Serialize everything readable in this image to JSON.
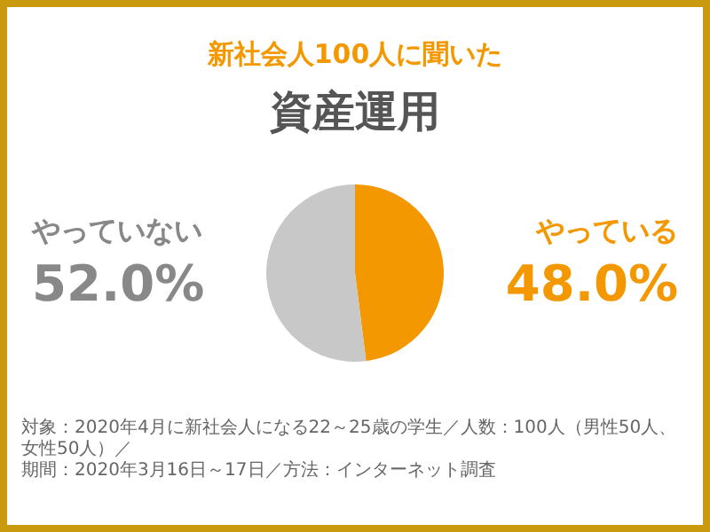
{
  "chart_data": {
    "type": "pie",
    "title": "新社会人100人に聞いた",
    "subtitle": "資産運用",
    "categories": [
      "やっている",
      "やっていない"
    ],
    "values": [
      48.0,
      52.0
    ],
    "value_labels": [
      "48.0%",
      "52.0%"
    ],
    "colors": [
      "#f39800",
      "#c8c8c8"
    ],
    "annotations": [
      "対象：2020年4月に新社会人になる22～25歳の学生／人数：100人（男性50人、女性50人）／",
      "期間：2020年3月16日～17日／方法：インターネット調査"
    ]
  }
}
